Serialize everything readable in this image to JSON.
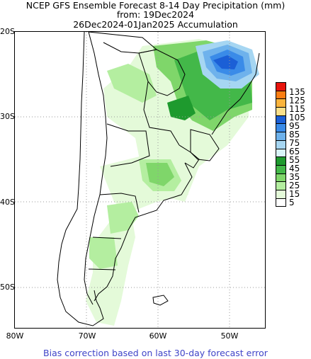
{
  "title": {
    "line1": "NCEP GFS Ensemble Forecast 8-14 Day Precipitation (mm)",
    "line2": "from: 19Dec2024",
    "line3": "26Dec2024-01Jan2025 Accumulation"
  },
  "lat_labels": [
    "20S",
    "30S",
    "40S",
    "50S"
  ],
  "lon_labels": [
    "80W",
    "70W",
    "60W",
    "50W"
  ],
  "legend": {
    "labels": [
      "135",
      "125",
      "115",
      "105",
      "95",
      "85",
      "75",
      "65",
      "55",
      "45",
      "35",
      "25",
      "15",
      "5"
    ],
    "colors": [
      "#e8140c",
      "#fb7d12",
      "#fbb43c",
      "#fbe08a",
      "#1b5fd6",
      "#3a8be8",
      "#6eb2ec",
      "#a6d6f2",
      "#d9f4f8",
      "#1e9a2e",
      "#43b849",
      "#7fd66a",
      "#b4eea0",
      "#e4fad9",
      "#ffffff"
    ]
  },
  "footer": "Bias correction based on last 30-day forecast error"
}
